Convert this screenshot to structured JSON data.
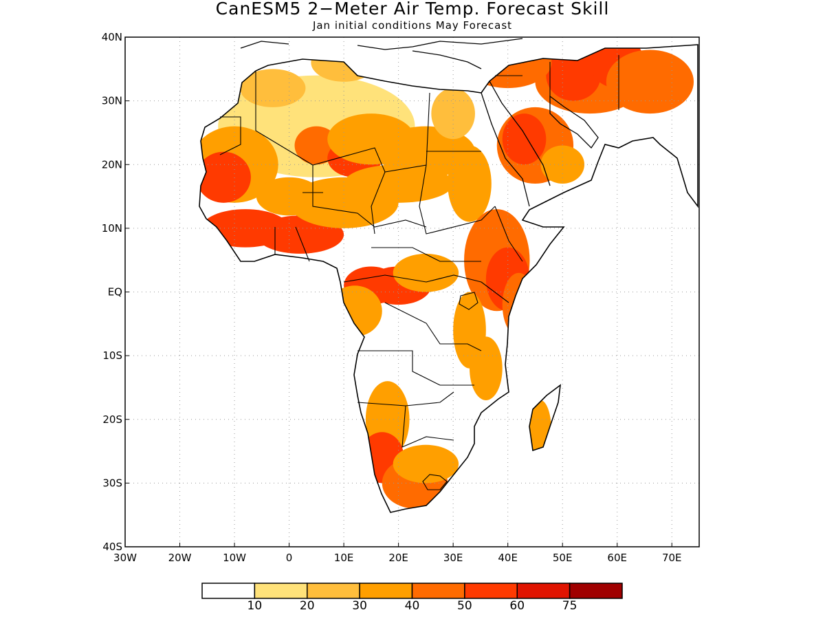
{
  "title": "CanESM5 2−Meter Air Temp. Forecast Skill",
  "subtitle": "Jan initial conditions   May Forecast",
  "map": {
    "lon_range": [
      -30,
      75
    ],
    "lat_range": [
      -40,
      40
    ],
    "lon_ticks": [
      "30W",
      "20W",
      "10W",
      "0",
      "10E",
      "20E",
      "30E",
      "40E",
      "50E",
      "60E",
      "70E"
    ],
    "lat_ticks": [
      "40N",
      "30N",
      "20N",
      "10N",
      "EQ",
      "10S",
      "20S",
      "30S",
      "40S"
    ],
    "gridlines": "dotted",
    "coastline_color": "#000000"
  },
  "colorbar": {
    "colors": [
      "#ffffff",
      "#ffe27a",
      "#ffbe3c",
      "#ff9f00",
      "#ff6b00",
      "#ff3a00",
      "#e01400",
      "#a00000"
    ],
    "labels": [
      "10",
      "20",
      "30",
      "40",
      "50",
      "60",
      "75"
    ]
  }
}
